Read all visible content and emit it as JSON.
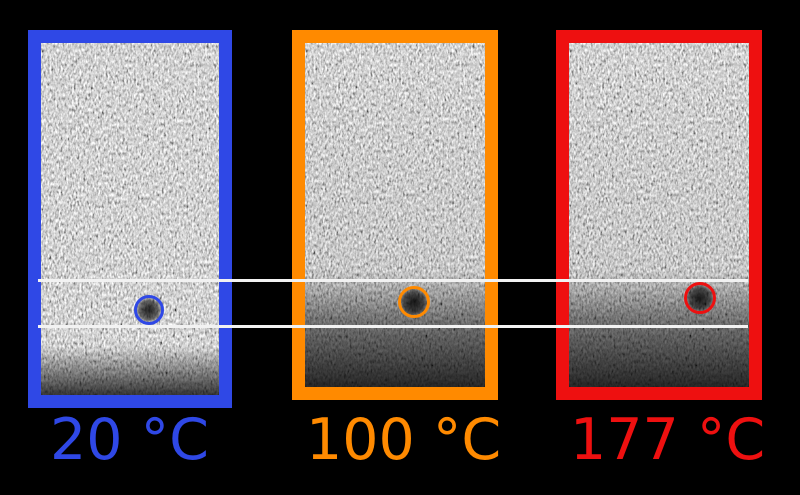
{
  "panels": [
    {
      "label": "20 °C",
      "color": "#2f48e6",
      "fade": "bottom-edge"
    },
    {
      "label": "100 °C",
      "color": "#ff8a00",
      "fade": "bottom-third"
    },
    {
      "label": "177 °C",
      "color": "#ee1010",
      "fade": "bottom-third"
    }
  ],
  "colors": {
    "background": "#000000",
    "guide_lines": "#f2f2f2",
    "speckle": "#8a8a8a"
  }
}
